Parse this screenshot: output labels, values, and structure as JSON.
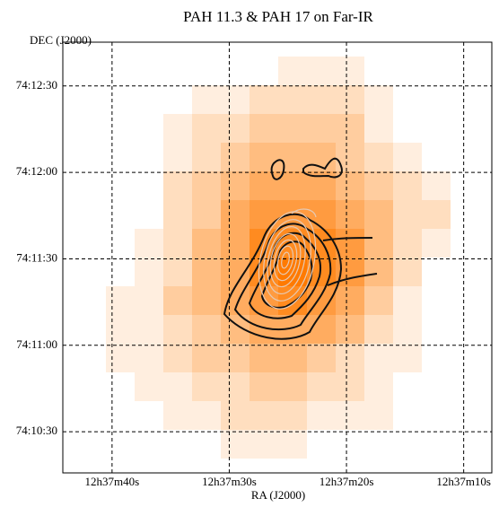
{
  "chart_data": {
    "type": "heatmap",
    "title": "PAH 11.3 & PAH 17 on Far-IR",
    "x_label": "RA (J2000)",
    "y_label": "DEC (J2000)",
    "color": "#ff7a00",
    "grid": true,
    "xlim": [
      44.2,
      7.6
    ],
    "xticks": [
      {
        "value": 40,
        "label": "12h37m40s"
      },
      {
        "value": 30,
        "label": "12h37m30s"
      },
      {
        "value": 20,
        "label": "12h37m20s"
      },
      {
        "value": 10,
        "label": "12h37m10s"
      }
    ],
    "ylim": [
      15.7,
      165.2
    ],
    "yticks": [
      {
        "value": 150,
        "label": "74:12:30"
      },
      {
        "value": 120,
        "label": "74:12:00"
      },
      {
        "value": 90,
        "label": "74:11:30"
      },
      {
        "value": 60,
        "label": "74:11:00"
      },
      {
        "value": 30,
        "label": "74:10:30"
      }
    ],
    "values": [
      [
        0,
        0,
        0,
        0,
        0,
        0,
        1,
        1,
        1,
        0,
        0,
        0
      ],
      [
        0,
        0,
        0,
        1,
        1,
        2,
        2,
        2,
        2,
        1,
        0,
        0
      ],
      [
        0,
        0,
        1,
        2,
        2,
        3,
        3,
        3,
        3,
        1,
        0,
        0
      ],
      [
        0,
        0,
        1,
        2,
        3,
        4,
        4,
        4,
        3,
        2,
        1,
        0
      ],
      [
        0,
        0,
        2,
        3,
        4,
        5,
        5,
        5,
        4,
        3,
        2,
        1
      ],
      [
        0,
        0,
        2,
        3,
        5,
        6,
        6,
        6,
        5,
        4,
        2,
        2
      ],
      [
        0,
        1,
        2,
        4,
        5,
        7,
        7,
        7,
        6,
        4,
        2,
        1
      ],
      [
        0,
        1,
        2,
        4,
        5,
        7,
        8,
        7,
        6,
        4,
        2,
        0
      ],
      [
        1,
        1,
        3,
        4,
        5,
        6,
        7,
        6,
        5,
        3,
        1,
        0
      ],
      [
        1,
        1,
        2,
        3,
        4,
        5,
        5,
        5,
        4,
        2,
        1,
        0
      ],
      [
        1,
        1,
        2,
        3,
        3,
        4,
        4,
        3,
        2,
        1,
        1,
        0
      ],
      [
        0,
        1,
        1,
        2,
        2,
        3,
        3,
        2,
        2,
        1,
        0,
        0
      ],
      [
        0,
        0,
        1,
        1,
        2,
        2,
        2,
        1,
        1,
        1,
        0,
        0
      ],
      [
        0,
        0,
        0,
        0,
        1,
        1,
        1,
        0,
        0,
        0,
        0,
        0
      ]
    ]
  }
}
